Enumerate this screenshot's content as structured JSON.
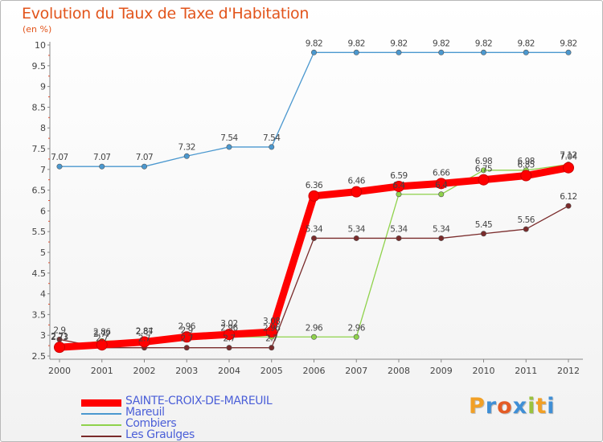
{
  "title": "Evolution du Taux de Taxe d'Habitation",
  "subtitle": "(en %)",
  "logo": {
    "letters": [
      "P",
      "r",
      "o",
      "x",
      "i",
      "t",
      "i"
    ],
    "colors": [
      "#f1a026",
      "#3f8fd6",
      "#e45b25",
      "#3f8fd6",
      "#9ac33e",
      "#f1a026",
      "#3f8fd6"
    ]
  },
  "chart_data": {
    "type": "line",
    "x": [
      "2000",
      "2001",
      "2002",
      "2003",
      "2004",
      "2005",
      "2006",
      "2007",
      "2008",
      "2009",
      "2010",
      "2011",
      "2012"
    ],
    "ylim": [
      2.5,
      10
    ],
    "yticks": [
      "2.5",
      "3",
      "3.5",
      "4",
      "4.5",
      "5",
      "5.5",
      "6",
      "6.5",
      "7",
      "7.5",
      "8",
      "8.5",
      "9",
      "9.5",
      "10"
    ],
    "grid": false,
    "legend_position": "bottom-left",
    "series": [
      {
        "name": "SAINTE-CROIX-DE-MAREUIL",
        "color": "#ff0000",
        "width": "thick",
        "values": [
          2.71,
          2.77,
          2.84,
          2.96,
          3.02,
          3.08,
          6.36,
          6.46,
          6.59,
          6.66,
          6.75,
          6.85,
          7.04
        ],
        "labels": [
          "2.71",
          "2.77",
          "2.84",
          "2.96",
          "3.02",
          "3.08",
          "6.36",
          "6.46",
          "6.59",
          "6.66",
          "6.75",
          "6.85",
          "7.04"
        ]
      },
      {
        "name": "Mareuil",
        "color": "#4b98cf",
        "width": "thin",
        "values": [
          7.07,
          7.07,
          7.07,
          7.32,
          7.54,
          7.54,
          9.82,
          9.82,
          9.82,
          9.82,
          9.82,
          9.82,
          9.82
        ],
        "labels": [
          "7.07",
          "7.07",
          "7.07",
          "7.32",
          "7.54",
          "7.54",
          "9.82",
          "9.82",
          "9.82",
          "9.82",
          "9.82",
          "9.82",
          "9.82"
        ]
      },
      {
        "name": "Combiers",
        "color": "#8fd24b",
        "width": "thin",
        "values": [
          2.73,
          2.86,
          2.87,
          2.9,
          2.96,
          2.96,
          2.96,
          2.96,
          6.4,
          6.4,
          6.98,
          6.98,
          7.12
        ],
        "labels": [
          "2.73",
          "2.86",
          "2.87",
          "2.9",
          "2.96",
          "2.96",
          "2.96",
          "2.96",
          "6.4",
          "6.4",
          "6.98",
          "6.98",
          "7.12"
        ]
      },
      {
        "name": "Les Graulges",
        "color": "#7a2b2b",
        "width": "thin",
        "values": [
          2.9,
          2.7,
          2.7,
          2.7,
          2.7,
          2.7,
          5.34,
          5.34,
          5.34,
          5.34,
          5.45,
          5.56,
          6.12
        ],
        "labels": [
          "2.9",
          "2.7",
          "2.7",
          "2.7",
          "2.7",
          "2.7",
          "5.34",
          "5.34",
          "5.34",
          "5.34",
          "5.45",
          "5.56",
          "6.12"
        ]
      }
    ]
  }
}
